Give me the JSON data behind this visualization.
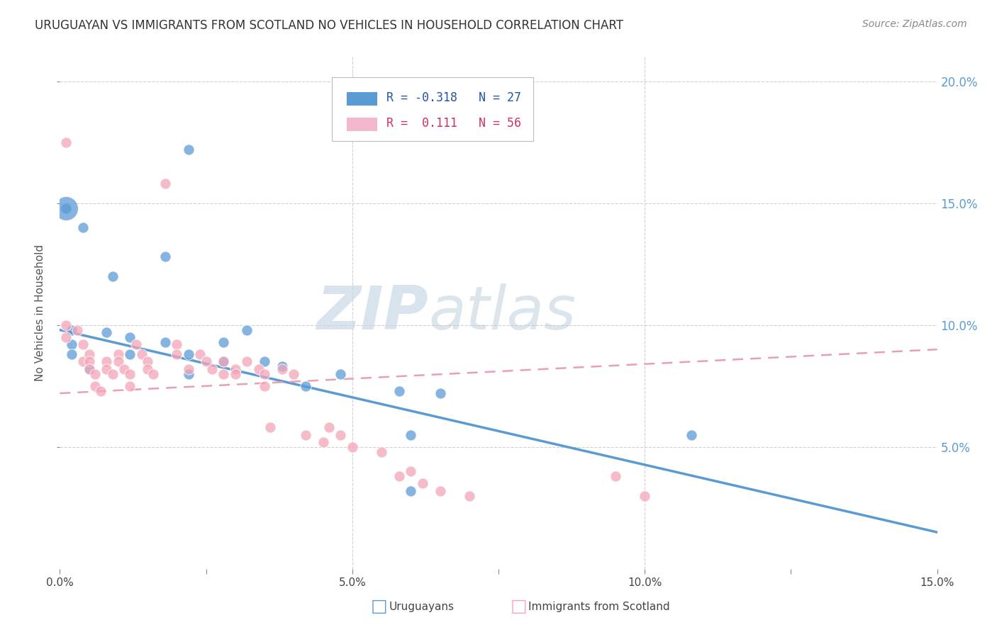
{
  "title": "URUGUAYAN VS IMMIGRANTS FROM SCOTLAND NO VEHICLES IN HOUSEHOLD CORRELATION CHART",
  "source_text": "Source: ZipAtlas.com",
  "ylabel": "No Vehicles in Household",
  "xlim": [
    0.0,
    0.15
  ],
  "ylim": [
    0.0,
    0.21
  ],
  "xtick_labels": [
    "0.0%",
    "",
    "5.0%",
    "",
    "10.0%",
    "",
    "15.0%"
  ],
  "xtick_vals": [
    0.0,
    0.025,
    0.05,
    0.075,
    0.1,
    0.125,
    0.15
  ],
  "xtick_minor": [
    0.025,
    0.075,
    0.125
  ],
  "ytick_labels_right": [
    "5.0%",
    "10.0%",
    "15.0%",
    "20.0%"
  ],
  "ytick_vals": [
    0.05,
    0.1,
    0.15,
    0.2
  ],
  "uruguayan_color": "#5b9bd5",
  "scotland_color": "#f4a5b8",
  "uruguayan_R": -0.318,
  "uruguayan_N": 27,
  "scotland_R": 0.111,
  "scotland_N": 56,
  "background_color": "#ffffff",
  "grid_color": "#d0d0d0",
  "watermark_zip": "ZIP",
  "watermark_atlas": "atlas",
  "uruguayan_scatter": [
    [
      0.001,
      0.148
    ],
    [
      0.018,
      0.128
    ],
    [
      0.022,
      0.172
    ],
    [
      0.004,
      0.14
    ],
    [
      0.009,
      0.12
    ],
    [
      0.002,
      0.098
    ],
    [
      0.008,
      0.097
    ],
    [
      0.002,
      0.092
    ],
    [
      0.012,
      0.095
    ],
    [
      0.018,
      0.093
    ],
    [
      0.028,
      0.093
    ],
    [
      0.032,
      0.098
    ],
    [
      0.002,
      0.088
    ],
    [
      0.012,
      0.088
    ],
    [
      0.022,
      0.088
    ],
    [
      0.028,
      0.085
    ],
    [
      0.035,
      0.085
    ],
    [
      0.038,
      0.083
    ],
    [
      0.005,
      0.082
    ],
    [
      0.022,
      0.08
    ],
    [
      0.048,
      0.08
    ],
    [
      0.042,
      0.075
    ],
    [
      0.058,
      0.073
    ],
    [
      0.065,
      0.072
    ],
    [
      0.06,
      0.055
    ],
    [
      0.108,
      0.055
    ],
    [
      0.06,
      0.032
    ]
  ],
  "scotland_scatter": [
    [
      0.001,
      0.175
    ],
    [
      0.001,
      0.095
    ],
    [
      0.001,
      0.1
    ],
    [
      0.003,
      0.098
    ],
    [
      0.004,
      0.092
    ],
    [
      0.004,
      0.085
    ],
    [
      0.005,
      0.088
    ],
    [
      0.005,
      0.085
    ],
    [
      0.005,
      0.082
    ],
    [
      0.006,
      0.08
    ],
    [
      0.006,
      0.075
    ],
    [
      0.007,
      0.073
    ],
    [
      0.008,
      0.085
    ],
    [
      0.008,
      0.082
    ],
    [
      0.009,
      0.08
    ],
    [
      0.01,
      0.088
    ],
    [
      0.01,
      0.085
    ],
    [
      0.011,
      0.082
    ],
    [
      0.012,
      0.08
    ],
    [
      0.012,
      0.075
    ],
    [
      0.013,
      0.092
    ],
    [
      0.014,
      0.088
    ],
    [
      0.015,
      0.085
    ],
    [
      0.015,
      0.082
    ],
    [
      0.016,
      0.08
    ],
    [
      0.018,
      0.158
    ],
    [
      0.02,
      0.092
    ],
    [
      0.02,
      0.088
    ],
    [
      0.022,
      0.082
    ],
    [
      0.024,
      0.088
    ],
    [
      0.025,
      0.085
    ],
    [
      0.026,
      0.082
    ],
    [
      0.028,
      0.085
    ],
    [
      0.028,
      0.08
    ],
    [
      0.03,
      0.082
    ],
    [
      0.03,
      0.08
    ],
    [
      0.032,
      0.085
    ],
    [
      0.034,
      0.082
    ],
    [
      0.035,
      0.08
    ],
    [
      0.035,
      0.075
    ],
    [
      0.036,
      0.058
    ],
    [
      0.038,
      0.082
    ],
    [
      0.04,
      0.08
    ],
    [
      0.042,
      0.055
    ],
    [
      0.045,
      0.052
    ],
    [
      0.046,
      0.058
    ],
    [
      0.048,
      0.055
    ],
    [
      0.05,
      0.05
    ],
    [
      0.055,
      0.048
    ],
    [
      0.058,
      0.038
    ],
    [
      0.06,
      0.04
    ],
    [
      0.062,
      0.035
    ],
    [
      0.065,
      0.032
    ],
    [
      0.07,
      0.03
    ],
    [
      0.095,
      0.038
    ],
    [
      0.1,
      0.03
    ]
  ]
}
